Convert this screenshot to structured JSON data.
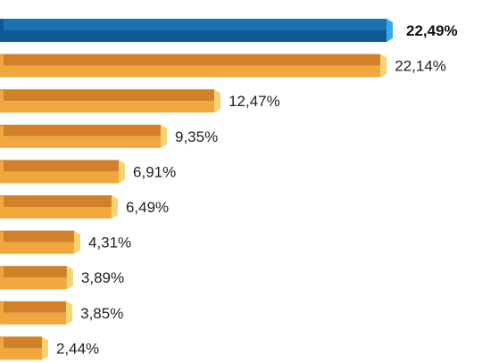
{
  "chart_data": {
    "type": "bar",
    "orientation": "horizontal",
    "values": [
      22.49,
      22.14,
      12.47,
      9.35,
      6.91,
      6.49,
      4.31,
      3.89,
      3.85,
      2.44
    ],
    "labels": [
      "22,49%",
      "22,14%",
      "12,47%",
      "9,35%",
      "6,91%",
      "6,49%",
      "4,31%",
      "3,89%",
      "3,85%",
      "2,44%"
    ],
    "highlight_index": 0,
    "xlim": [
      0,
      22.49
    ],
    "colors": {
      "highlight_top": "#1a72b0",
      "highlight_bottom": "#0f5a92",
      "highlight_cap": "#33aaee",
      "bar_top": "#d2812a",
      "bar_bottom": "#f0a73e",
      "bar_cap": "#f7d371"
    }
  }
}
